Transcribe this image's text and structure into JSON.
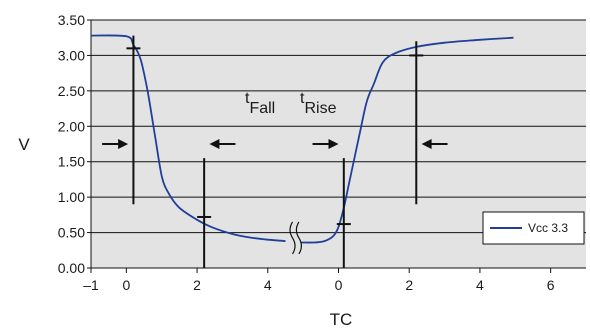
{
  "chart_data": {
    "type": "line",
    "title": "",
    "xlabel": "TC",
    "ylabel": "V",
    "ylim": [
      0,
      3.5
    ],
    "grid": true,
    "legend_position": "bottom-right",
    "colors": {
      "plot_bg": "#e3e3e3",
      "grid": "#111111",
      "series": "#1f3f99",
      "markers": "#111111"
    },
    "x_tick_labels": [
      "–1",
      "0",
      "2",
      "4",
      "0",
      "2",
      "4",
      "6"
    ],
    "y_tick_labels": [
      "0.00",
      "0.50",
      "1.00",
      "1.50",
      "2.00",
      "2.50",
      "3.00",
      "3.50"
    ],
    "series": [
      {
        "name": "Vcc 3.3",
        "segments": [
          {
            "x": [
              -1,
              0,
              0.2,
              0.4,
              0.6,
              0.8,
              1.0,
              1.2,
              1.5,
              2.0,
              2.4,
              3.0,
              3.5,
              4.0,
              4.5
            ],
            "y": [
              3.28,
              3.27,
              3.15,
              2.95,
              2.5,
              1.9,
              1.3,
              1.05,
              0.85,
              0.68,
              0.58,
              0.48,
              0.43,
              0.4,
              0.38
            ]
          },
          {
            "x": [
              4.95,
              5.3,
              5.6,
              5.85,
              6.0,
              6.15,
              6.3,
              6.6,
              6.8,
              7.0,
              7.25,
              7.6,
              8.2,
              9.0,
              10.0,
              10.95
            ],
            "y": [
              0.36,
              0.36,
              0.38,
              0.45,
              0.58,
              0.85,
              1.2,
              1.9,
              2.35,
              2.6,
              2.9,
              3.03,
              3.12,
              3.18,
              3.22,
              3.25
            ]
          }
        ]
      }
    ],
    "annotations": [
      {
        "label": "t",
        "sub": "Fall"
      },
      {
        "label": "t",
        "sub": "Rise"
      }
    ]
  }
}
